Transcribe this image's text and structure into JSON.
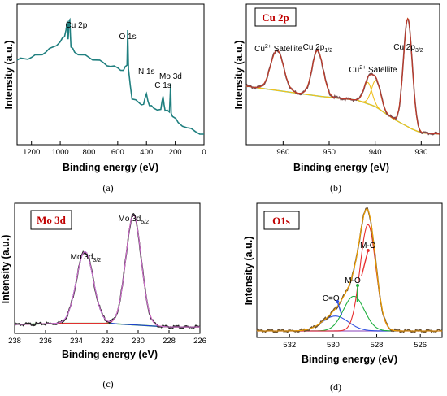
{
  "panels": [
    {
      "caption": "(a)",
      "xlabel": "Binding energy (eV)",
      "ylabel": "Intensity (a.u.)",
      "box_label": "",
      "xlim": [
        1300,
        0
      ],
      "xticks": [
        1200,
        1000,
        800,
        600,
        400,
        200,
        0
      ],
      "annotations": [
        {
          "text": "Cu 2p",
          "x": 933
        },
        {
          "text": "O 1s",
          "x": 531
        },
        {
          "text": "N 1s",
          "x": 400
        },
        {
          "text": "C 1s",
          "x": 285
        },
        {
          "text": "Mo 3d",
          "x": 232
        }
      ]
    },
    {
      "caption": "(b)",
      "xlabel": "Binding energy (eV)",
      "ylabel": "Intensity (a.u.)",
      "box_label": "Cu 2p",
      "xlim": [
        968,
        926
      ],
      "xticks": [
        960,
        950,
        940,
        930
      ],
      "annotations": [
        {
          "text": "Cu",
          "sup": "2+",
          "rest": " Satellite",
          "x": 961
        },
        {
          "text": "Cu 2p",
          "sub": "1/2",
          "x": 952.5
        },
        {
          "text": "Cu",
          "sup": "2+",
          "rest": " Satellite",
          "x": 941
        },
        {
          "text": "Cu 2p",
          "sub": "3/2",
          "x": 932.8
        }
      ]
    },
    {
      "caption": "(c)",
      "xlabel": "Binding energy (eV)",
      "ylabel": "Intensity (a.u.)",
      "box_label": "Mo 3d",
      "xlim": [
        238,
        226
      ],
      "xticks": [
        238,
        236,
        234,
        232,
        230,
        228,
        226
      ],
      "annotations": [
        {
          "text": "Mo 3d",
          "sub": "3/2",
          "x": 233.4
        },
        {
          "text": "Mo 3d",
          "sub": "5/2",
          "x": 230.3
        }
      ]
    },
    {
      "caption": "(d)",
      "xlabel": "Binding energy (eV)",
      "ylabel": "Intensity (a.u.)",
      "box_label": "O1s",
      "xlim": [
        533.5,
        525
      ],
      "xticks": [
        532,
        530,
        528,
        526
      ],
      "annotations": [
        {
          "text": "C=O",
          "x": 530.1
        },
        {
          "text": "M-O",
          "x": 529.1
        },
        {
          "text": "M-O",
          "x": 528.4
        }
      ]
    }
  ],
  "chart_data": [
    {
      "type": "line",
      "title": "(a)",
      "xlabel": "Binding energy (eV)",
      "ylabel": "Intensity (a.u.)",
      "xlim": [
        1300,
        0
      ],
      "x_reversed": true,
      "series": [
        {
          "color": "#1f7f7f",
          "x": [
            1300,
            1250,
            1200,
            1150,
            1100,
            1050,
            1000,
            970,
            950,
            945,
            940,
            933,
            925,
            900,
            850,
            800,
            750,
            700,
            650,
            600,
            560,
            535,
            531,
            525,
            500,
            450,
            420,
            400,
            380,
            350,
            300,
            285,
            270,
            240,
            232,
            228,
            210,
            180,
            120,
            60,
            0
          ],
          "y": [
            0.62,
            0.63,
            0.64,
            0.66,
            0.68,
            0.72,
            0.76,
            0.8,
            0.92,
            0.78,
            0.9,
            0.93,
            0.72,
            0.68,
            0.66,
            0.64,
            0.62,
            0.6,
            0.57,
            0.56,
            0.54,
            0.58,
            0.85,
            0.55,
            0.32,
            0.29,
            0.28,
            0.36,
            0.27,
            0.25,
            0.24,
            0.34,
            0.23,
            0.22,
            0.44,
            0.21,
            0.18,
            0.14,
            0.1,
            0.07,
            0.05
          ]
        }
      ]
    },
    {
      "type": "line",
      "title": "Cu 2p",
      "xlabel": "Binding energy (eV)",
      "ylabel": "Intensity (a.u.)",
      "xlim": [
        968,
        926
      ],
      "x_reversed": true,
      "background": {
        "x": [
          968,
          960,
          952,
          944,
          940,
          936,
          932,
          930,
          926
        ],
        "y": [
          0.4,
          0.36,
          0.32,
          0.29,
          0.24,
          0.14,
          0.06,
          0.03,
          0.02
        ]
      },
      "peaks": [
        {
          "center": 961.3,
          "height": 0.32,
          "width": 1.4
        },
        {
          "center": 952.5,
          "height": 0.36,
          "width": 1.2
        },
        {
          "center": 941.6,
          "height": 0.17,
          "width": 0.9
        },
        {
          "center": 939.8,
          "height": 0.21,
          "width": 1.0
        },
        {
          "center": 932.9,
          "height": 0.86,
          "width": 0.95
        }
      ],
      "series": [
        {
          "name": "",
          "role": "raw",
          "color": "#7a4e4e"
        },
        {
          "name": "",
          "role": "envelope",
          "color": "#c0392b"
        },
        {
          "name": "",
          "role": "component",
          "color": "#f0c020"
        },
        {
          "name": "",
          "role": "background",
          "color": "#00d7e0"
        }
      ]
    },
    {
      "type": "line",
      "title": "Mo 3d",
      "xlabel": "Binding energy (eV)",
      "ylabel": "Intensity (a.u.)",
      "xlim": [
        238,
        226
      ],
      "x_reversed": true,
      "background": {
        "x": [
          238,
          235,
          232,
          230,
          228,
          226
        ],
        "y": [
          0.04,
          0.05,
          0.05,
          0.035,
          0.02,
          0.02
        ]
      },
      "peaks": [
        {
          "center": 233.45,
          "height": 0.6,
          "width": 0.55
        },
        {
          "center": 230.3,
          "height": 0.92,
          "width": 0.5
        }
      ],
      "series": [
        {
          "name": "",
          "role": "raw",
          "color": "#222222"
        },
        {
          "name": "",
          "role": "envelope",
          "color": "#d070d0"
        },
        {
          "name": "",
          "role": "component",
          "color": "#2040d0"
        },
        {
          "name": "",
          "role": "component",
          "color": "#e03030"
        },
        {
          "name": "",
          "role": "background",
          "color": "#20a020"
        }
      ]
    },
    {
      "type": "line",
      "title": "O1s",
      "xlabel": "Binding energy (eV)",
      "ylabel": "Intensity (a.u.)",
      "xlim": [
        533.5,
        525
      ],
      "x_reversed": true,
      "peaks": [
        {
          "label": "C=O",
          "center": 529.9,
          "height": 0.12,
          "width": 0.6
        },
        {
          "label": "M-O",
          "center": 529.05,
          "height": 0.28,
          "width": 0.48
        },
        {
          "label": "M-O",
          "center": 528.4,
          "height": 0.86,
          "width": 0.36
        }
      ],
      "series": [
        {
          "name": "",
          "role": "raw",
          "color": "#6a5030"
        },
        {
          "name": "",
          "role": "envelope",
          "color": "#f0a000"
        },
        {
          "name": "",
          "role": "component",
          "color": "#3050e0"
        },
        {
          "name": "",
          "role": "component",
          "color": "#20b040"
        },
        {
          "name": "",
          "role": "component",
          "color": "#e83030"
        },
        {
          "name": "",
          "role": "background",
          "color": "#b080d0"
        }
      ]
    }
  ]
}
